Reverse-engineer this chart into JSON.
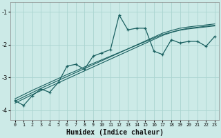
{
  "xlabel": "Humidex (Indice chaleur)",
  "bg_color": "#cceae7",
  "line_color": "#1a6060",
  "grid_color": "#aad4d0",
  "x": [
    0,
    1,
    2,
    3,
    4,
    5,
    6,
    7,
    8,
    9,
    10,
    11,
    12,
    13,
    14,
    15,
    16,
    17,
    18,
    19,
    20,
    21,
    22,
    23
  ],
  "y_main": [
    -3.7,
    -3.85,
    -3.55,
    -3.35,
    -3.45,
    -3.15,
    -2.65,
    -2.6,
    -2.75,
    -2.35,
    -2.25,
    -2.15,
    -1.1,
    -1.55,
    -1.5,
    -1.5,
    -2.2,
    -2.3,
    -1.85,
    -1.95,
    -1.9,
    -1.9,
    -2.05,
    -1.75
  ],
  "y_line1": [
    -3.65,
    -3.52,
    -3.39,
    -3.27,
    -3.15,
    -3.03,
    -2.91,
    -2.8,
    -2.68,
    -2.57,
    -2.46,
    -2.35,
    -2.24,
    -2.13,
    -2.02,
    -1.91,
    -1.8,
    -1.69,
    -1.62,
    -1.55,
    -1.5,
    -1.47,
    -1.44,
    -1.41
  ],
  "y_line2": [
    -3.72,
    -3.59,
    -3.46,
    -3.33,
    -3.21,
    -3.09,
    -2.97,
    -2.85,
    -2.73,
    -2.61,
    -2.49,
    -2.37,
    -2.25,
    -2.13,
    -2.01,
    -1.89,
    -1.77,
    -1.65,
    -1.57,
    -1.5,
    -1.46,
    -1.43,
    -1.4,
    -1.37
  ],
  "y_line3": [
    -3.78,
    -3.65,
    -3.52,
    -3.4,
    -3.28,
    -3.16,
    -3.04,
    -2.92,
    -2.8,
    -2.68,
    -2.56,
    -2.44,
    -2.32,
    -2.2,
    -2.08,
    -1.96,
    -1.84,
    -1.72,
    -1.63,
    -1.56,
    -1.52,
    -1.49,
    -1.46,
    -1.43
  ],
  "xlim": [
    -0.5,
    23.5
  ],
  "ylim": [
    -4.3,
    -0.7
  ],
  "yticks": [
    -4,
    -3,
    -2,
    -1
  ],
  "xticks": [
    0,
    1,
    2,
    3,
    4,
    5,
    6,
    7,
    8,
    9,
    10,
    11,
    12,
    13,
    14,
    15,
    16,
    17,
    18,
    19,
    20,
    21,
    22,
    23
  ]
}
